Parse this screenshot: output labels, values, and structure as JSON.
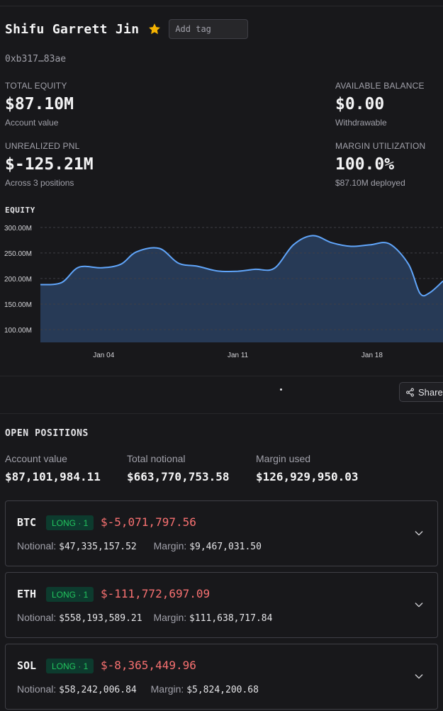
{
  "profile": {
    "name": "Shifu Garrett Jin",
    "star_icon": "star-icon",
    "tag_placeholder": "Add tag",
    "address": "0xb317…83ae"
  },
  "stats": {
    "total_equity": {
      "label": "TOTAL EQUITY",
      "value": "$87.10M",
      "sub": "Account value"
    },
    "available_balance": {
      "label": "AVAILABLE BALANCE",
      "value": "$0.00",
      "sub": "Withdrawable"
    },
    "unrealized_pnl": {
      "label": "UNREALIZED PNL",
      "value": "$-125.21M",
      "sub": "Across 3 positions"
    },
    "margin_utilization": {
      "label": "MARGIN UTILIZATION",
      "value": "100.0%",
      "sub": "$87.10M deployed"
    }
  },
  "equity_section": {
    "title": "EQUITY"
  },
  "chart_data": {
    "type": "area",
    "title": "EQUITY",
    "ylim": [
      75,
      315
    ],
    "y_ticks": [
      100,
      150,
      200,
      250,
      300
    ],
    "y_tick_labels": [
      "100.00M",
      "150.00M",
      "200.00M",
      "250.00M",
      "300.00M"
    ],
    "x_ticks": [
      4,
      11,
      18
    ],
    "x_tick_labels": [
      "Jan 04",
      "Jan 11",
      "Jan 18"
    ],
    "xlim": [
      0.7,
      21.7
    ],
    "x": [
      0.7,
      1.8,
      2.7,
      3.9,
      4.9,
      5.7,
      6.9,
      7.9,
      8.9,
      9.9,
      10.9,
      11.9,
      12.9,
      13.9,
      14.9,
      15.9,
      16.9,
      17.9,
      18.9,
      19.9,
      20.5,
      21.0,
      21.7
    ],
    "series": [
      {
        "values": [
          188,
          192,
          222,
          221,
          228,
          252,
          259,
          230,
          224,
          215,
          214,
          218,
          220,
          266,
          284,
          270,
          263,
          266,
          268,
          228,
          171,
          172,
          195
        ]
      }
    ],
    "colors": {
      "line": "#60a5fa",
      "fill": "#2a4160",
      "grid": "#3f3f46"
    }
  },
  "toolbar": {
    "share_label": "Share",
    "share_icon": "share-icon"
  },
  "open_positions": {
    "title": "OPEN POSITIONS",
    "summary": [
      {
        "label": "Account value",
        "value": "$87,101,984.11"
      },
      {
        "label": "Total notional",
        "value": "$663,770,753.58"
      },
      {
        "label": "Margin used",
        "value": "$126,929,950.03"
      }
    ],
    "positions": [
      {
        "coin": "BTC",
        "badge": "LONG · 1",
        "pnl": "$-5,071,797.56",
        "notional_label": "Notional:",
        "notional": "$47,335,157.52",
        "margin_label": "Margin:",
        "margin": "$9,467,031.50"
      },
      {
        "coin": "ETH",
        "badge": "LONG · 1",
        "pnl": "$-111,772,697.09",
        "notional_label": "Notional:",
        "notional": "$558,193,589.21",
        "margin_label": "Margin:",
        "margin": "$111,638,717.84"
      },
      {
        "coin": "SOL",
        "badge": "LONG · 1",
        "pnl": "$-8,365,449.96",
        "notional_label": "Notional:",
        "notional": "$58,242,006.84",
        "margin_label": "Margin:",
        "margin": "$5,824,200.68"
      }
    ]
  }
}
